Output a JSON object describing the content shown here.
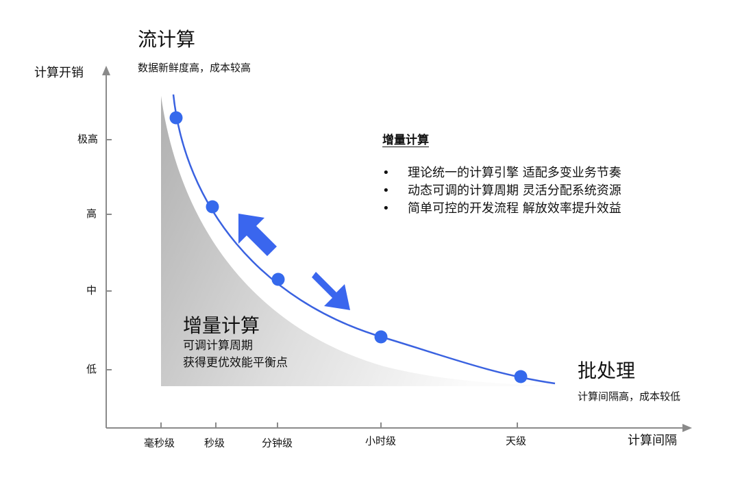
{
  "top_label": {
    "title": "流计算",
    "subtitle": "数据新鲜度高，成本较高"
  },
  "y_axis": {
    "title": "计算开销",
    "ticks": [
      "极高",
      "高",
      "中",
      "低"
    ]
  },
  "x_axis": {
    "title": "计算间隔",
    "ticks": [
      "毫秒级",
      "秒级",
      "分钟级",
      "小时级",
      "天级"
    ]
  },
  "legend": {
    "title": "增量计算",
    "bullet_symbol": "•",
    "items": [
      "理论统一的计算引擎 适配多变业务节奏",
      "动态可调的计算周期 灵活分配系统资源",
      "简单可控的开发流程 解放效率提升效益"
    ]
  },
  "area_label": {
    "title": "增量计算",
    "line1": "可调计算周期",
    "line2": "获得更优效能平衡点"
  },
  "bottom_right": {
    "title": "批处理",
    "subtitle": "计算间隔高，成本较低"
  },
  "colors": {
    "curve": "#3a62e0",
    "points": "#3569ec",
    "arrows": "#3a66ee",
    "axis": "#8a8a8a",
    "fill_dark": "#b4b4b4",
    "fill_light": "#fbfbfb"
  }
}
